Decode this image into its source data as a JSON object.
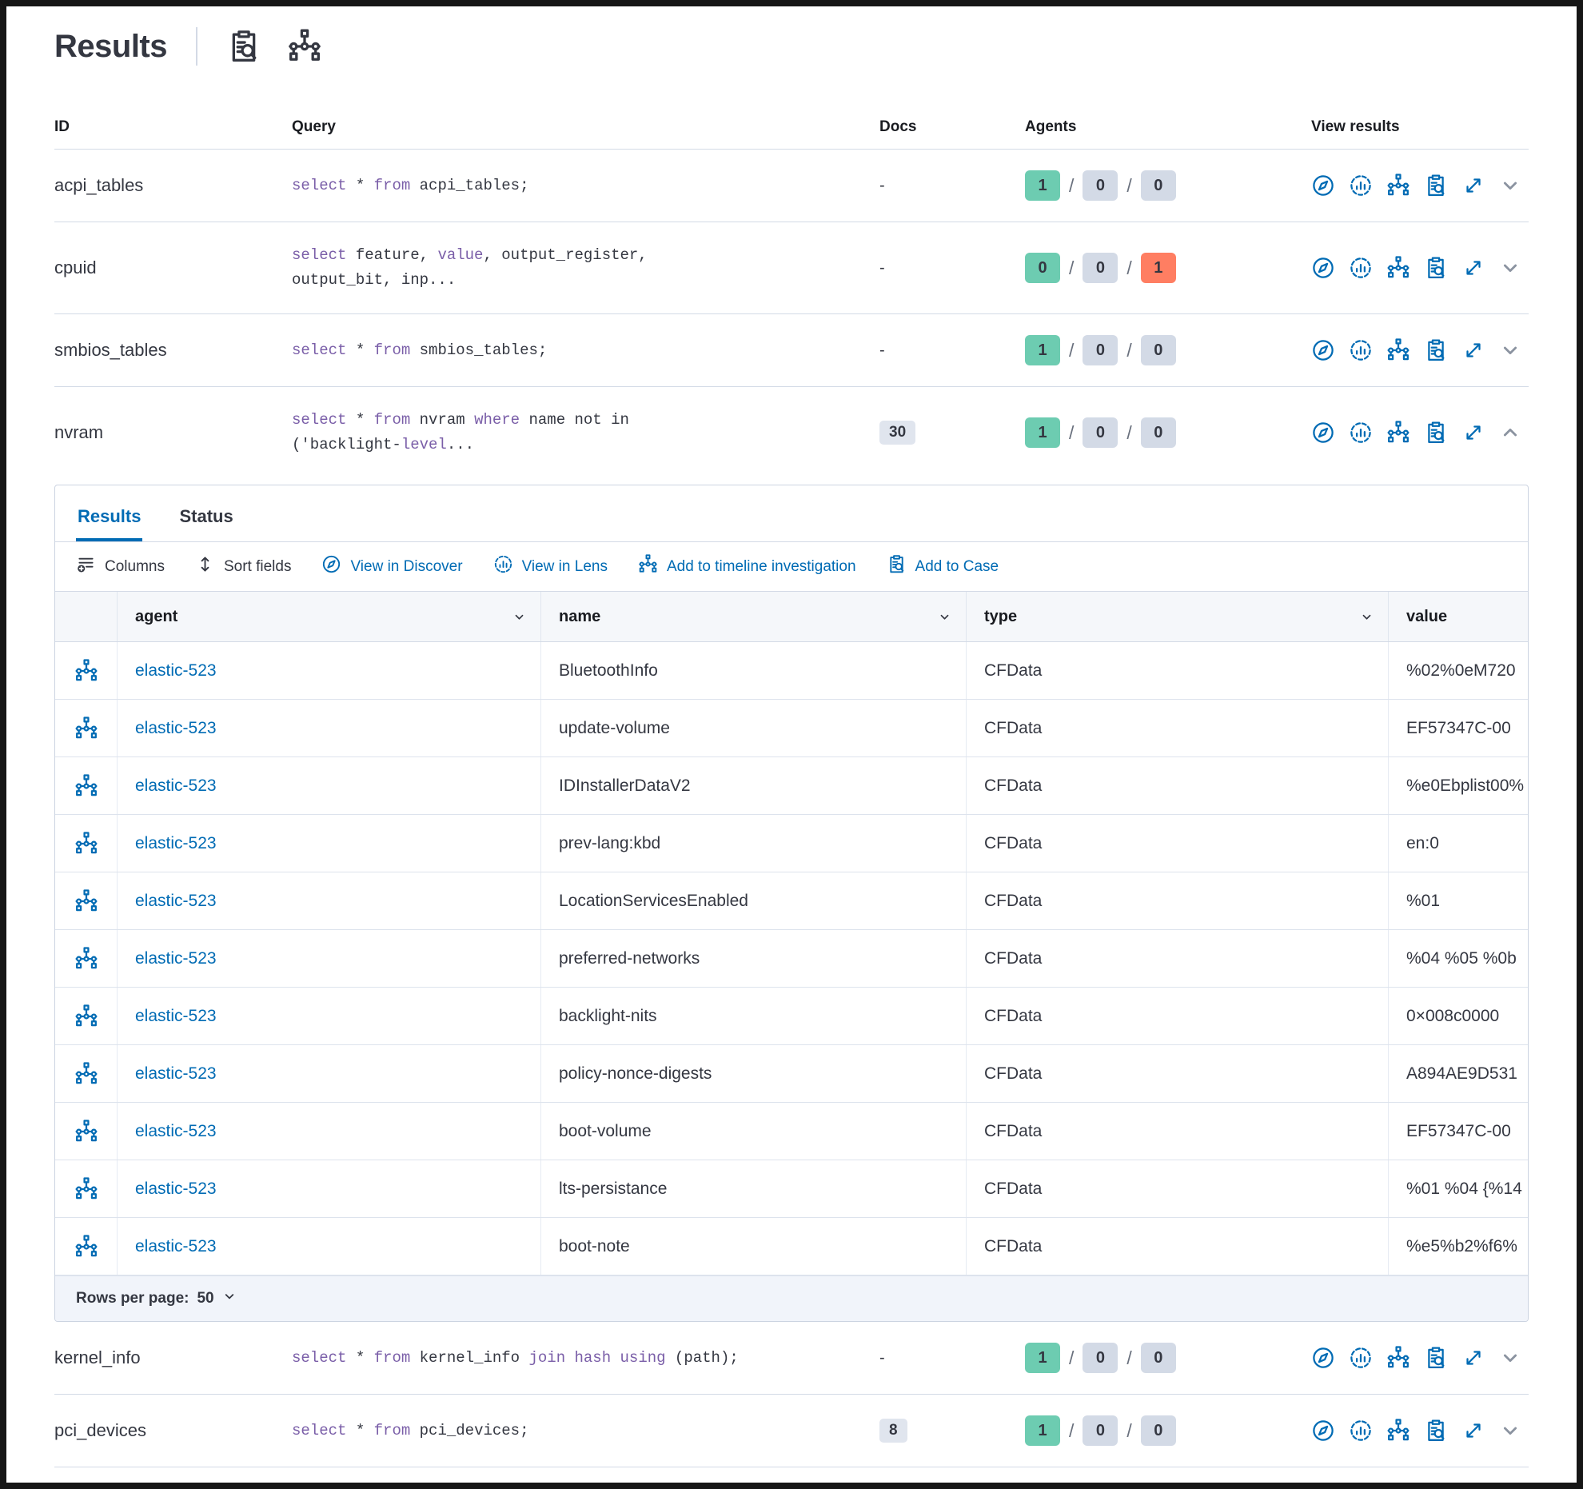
{
  "colors": {
    "green": "#6dccb1",
    "gray": "#d3dae6",
    "red": "#ff7e62",
    "blue": "#006bb4",
    "purple": "#7a5ea8",
    "docs_badge_bg": "#e0e5ee"
  },
  "header": {
    "title": "Results",
    "icons": [
      "inspect",
      "timeline"
    ]
  },
  "results_table": {
    "columns": [
      "ID",
      "Query",
      "Docs",
      "Agents",
      "View results"
    ],
    "view_action_icons": [
      "discover",
      "lens",
      "timeline",
      "inspect",
      "expand"
    ],
    "rows": [
      {
        "id": "acpi_tables",
        "query_lines": [
          [
            {
              "t": "select",
              "kw": true
            },
            {
              "t": " * "
            },
            {
              "t": "from",
              "kw": true
            },
            {
              "t": " acpi_tables;"
            }
          ]
        ],
        "docs": "-",
        "agents": [
          {
            "count": "1",
            "color": "green"
          },
          {
            "count": "0",
            "color": "gray"
          },
          {
            "count": "0",
            "color": "gray"
          }
        ],
        "expanded": false
      },
      {
        "id": "cpuid",
        "query_lines": [
          [
            {
              "t": "select",
              "kw": true
            },
            {
              "t": " feature, "
            },
            {
              "t": "value",
              "kw": true
            },
            {
              "t": ", output_register,"
            }
          ],
          [
            {
              "t": "output_bit, inp..."
            }
          ]
        ],
        "docs": "-",
        "agents": [
          {
            "count": "0",
            "color": "green"
          },
          {
            "count": "0",
            "color": "gray"
          },
          {
            "count": "1",
            "color": "red"
          }
        ],
        "expanded": false
      },
      {
        "id": "smbios_tables",
        "query_lines": [
          [
            {
              "t": "select",
              "kw": true
            },
            {
              "t": " * "
            },
            {
              "t": "from",
              "kw": true
            },
            {
              "t": " smbios_tables;"
            }
          ]
        ],
        "docs": "-",
        "agents": [
          {
            "count": "1",
            "color": "green"
          },
          {
            "count": "0",
            "color": "gray"
          },
          {
            "count": "0",
            "color": "gray"
          }
        ],
        "expanded": false
      },
      {
        "id": "nvram",
        "query_lines": [
          [
            {
              "t": "select",
              "kw": true
            },
            {
              "t": " * "
            },
            {
              "t": "from",
              "kw": true
            },
            {
              "t": " nvram "
            },
            {
              "t": "where",
              "kw": true
            },
            {
              "t": " name not in"
            }
          ],
          [
            {
              "t": "('backlight-"
            },
            {
              "t": "level",
              "kw": true
            },
            {
              "t": "..."
            }
          ]
        ],
        "docs": "30",
        "agents": [
          {
            "count": "1",
            "color": "green"
          },
          {
            "count": "0",
            "color": "gray"
          },
          {
            "count": "0",
            "color": "gray"
          }
        ],
        "expanded": true
      },
      {
        "id": "kernel_info",
        "query_lines": [
          [
            {
              "t": "select",
              "kw": true
            },
            {
              "t": " * "
            },
            {
              "t": "from",
              "kw": true
            },
            {
              "t": " kernel_info "
            },
            {
              "t": "join",
              "kw": true
            },
            {
              "t": " "
            },
            {
              "t": "hash",
              "kw": true
            },
            {
              "t": " "
            },
            {
              "t": "using",
              "kw": true
            },
            {
              "t": " (path);"
            }
          ]
        ],
        "docs": "-",
        "agents": [
          {
            "count": "1",
            "color": "green"
          },
          {
            "count": "0",
            "color": "gray"
          },
          {
            "count": "0",
            "color": "gray"
          }
        ],
        "expanded": false
      },
      {
        "id": "pci_devices",
        "query_lines": [
          [
            {
              "t": "select",
              "kw": true
            },
            {
              "t": " * "
            },
            {
              "t": "from",
              "kw": true
            },
            {
              "t": " pci_devices;"
            }
          ]
        ],
        "docs": "8",
        "agents": [
          {
            "count": "1",
            "color": "green"
          },
          {
            "count": "0",
            "color": "gray"
          },
          {
            "count": "0",
            "color": "gray"
          }
        ],
        "expanded": false
      }
    ]
  },
  "panel": {
    "tabs": [
      {
        "label": "Results",
        "active": true
      },
      {
        "label": "Status",
        "active": false
      }
    ],
    "toolbar": [
      {
        "label": "Columns",
        "icon": "columns",
        "style": "dark"
      },
      {
        "label": "Sort fields",
        "icon": "sort",
        "style": "dark"
      },
      {
        "label": "View in Discover",
        "icon": "discover",
        "style": "blue"
      },
      {
        "label": "View in Lens",
        "icon": "lens",
        "style": "blue"
      },
      {
        "label": "Add to timeline investigation",
        "icon": "timeline",
        "style": "blue"
      },
      {
        "label": "Add to Case",
        "icon": "case",
        "style": "blue"
      }
    ],
    "grid": {
      "row_icon": "timeline",
      "columns": [
        {
          "label": "agent",
          "sortable": true
        },
        {
          "label": "name",
          "sortable": true
        },
        {
          "label": "type",
          "sortable": true
        },
        {
          "label": "value",
          "sortable": false
        }
      ],
      "rows": [
        {
          "agent": "elastic-523",
          "name": "BluetoothInfo",
          "type": "CFData",
          "value": "%02%0eM720"
        },
        {
          "agent": "elastic-523",
          "name": "update-volume",
          "type": "CFData",
          "value": "EF57347C-00"
        },
        {
          "agent": "elastic-523",
          "name": "IDInstallerDataV2",
          "type": "CFData",
          "value": "%e0Ebplist00%"
        },
        {
          "agent": "elastic-523",
          "name": "prev-lang:kbd",
          "type": "CFData",
          "value": "en:0"
        },
        {
          "agent": "elastic-523",
          "name": "LocationServicesEnabled",
          "type": "CFData",
          "value": "%01"
        },
        {
          "agent": "elastic-523",
          "name": "preferred-networks",
          "type": "CFData",
          "value": "%04 %05 %0b"
        },
        {
          "agent": "elastic-523",
          "name": "backlight-nits",
          "type": "CFData",
          "value": "0×008c0000"
        },
        {
          "agent": "elastic-523",
          "name": "policy-nonce-digests",
          "type": "CFData",
          "value": "A894AE9D531"
        },
        {
          "agent": "elastic-523",
          "name": "boot-volume",
          "type": "CFData",
          "value": "EF57347C-00"
        },
        {
          "agent": "elastic-523",
          "name": "lts-persistance",
          "type": "CFData",
          "value": "%01 %04 {%14"
        },
        {
          "agent": "elastic-523",
          "name": "boot-note",
          "type": "CFData",
          "value": "%e5%b2%f6%"
        }
      ]
    },
    "footer": {
      "label": "Rows per page:",
      "value": "50"
    }
  }
}
